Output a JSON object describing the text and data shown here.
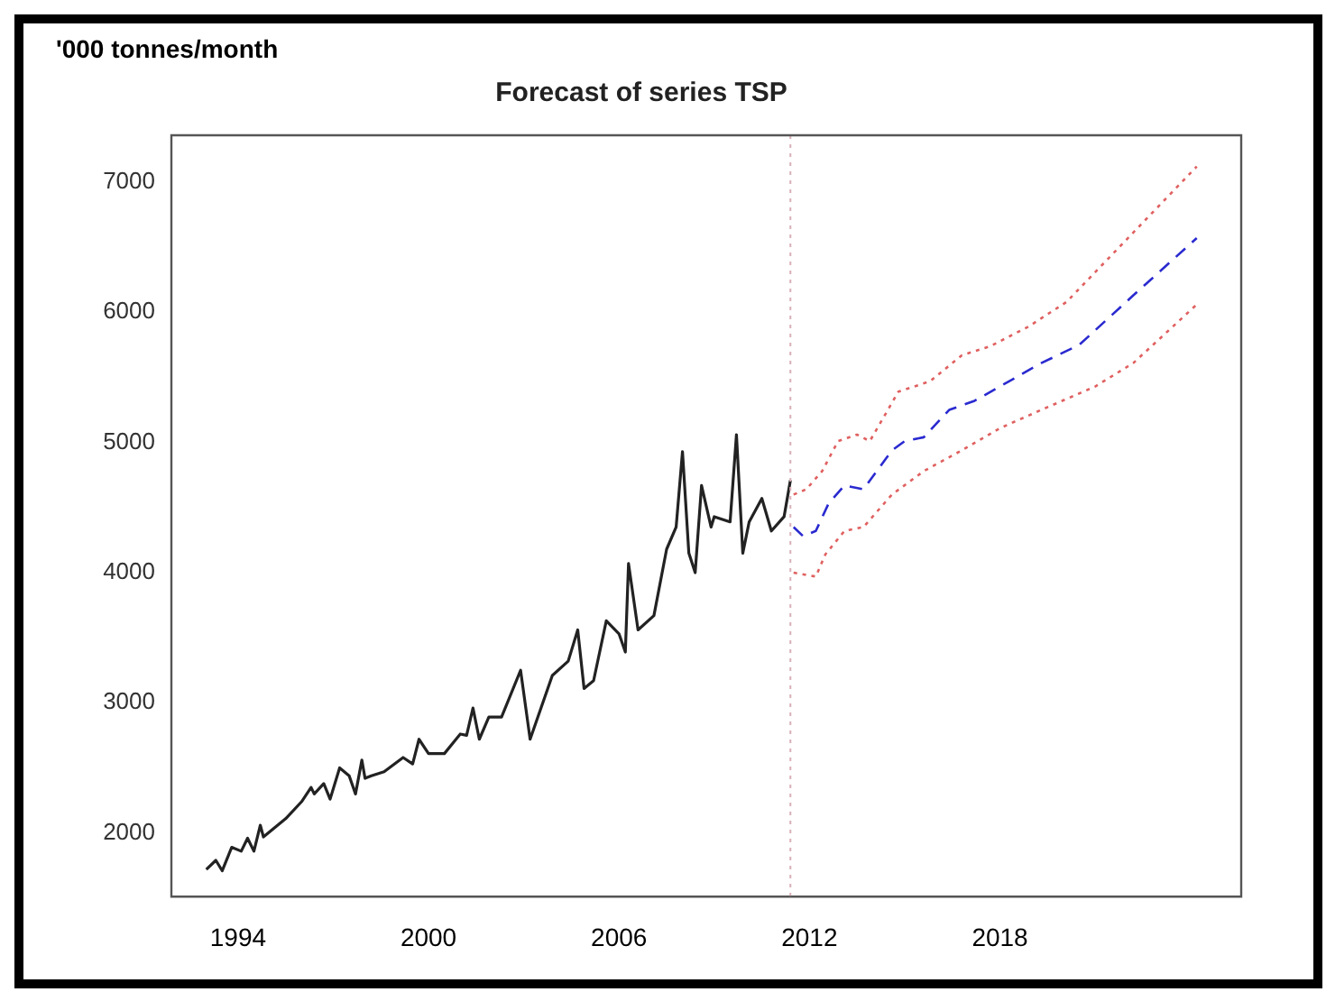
{
  "chart_data": {
    "type": "line",
    "title": "Forecast of series TSP",
    "ylabel": "'000 tonnes/month",
    "xlim": [
      1991.9,
      2025.6
    ],
    "xticks": [
      1994,
      2000,
      2006,
      2012,
      2018
    ],
    "ylim": [
      1510,
      7360
    ],
    "yticks": [
      2000,
      3000,
      4000,
      5000,
      6000,
      7000
    ],
    "grid": false,
    "legend": false,
    "ref_lines": [
      {
        "axis": "x",
        "value": 2011.4,
        "color": "#d8b0b8",
        "line_style": "dotted"
      }
    ],
    "series": [
      {
        "color": "#222222",
        "line_style": "solid",
        "x": [
          1993.0,
          1993.3,
          1993.5,
          1993.8,
          1994.1,
          1994.3,
          1994.5,
          1994.7,
          1994.8,
          1995.5,
          1996.0,
          1996.3,
          1996.4,
          1996.7,
          1996.9,
          1997.2,
          1997.5,
          1997.7,
          1997.9,
          1998.0,
          1998.2,
          1998.6,
          1999.2,
          1999.5,
          1999.7,
          2000.0,
          2000.5,
          2001.0,
          2001.2,
          2001.4,
          2001.6,
          2001.9,
          2002.3,
          2002.9,
          2003.2,
          2003.9,
          2004.4,
          2004.7,
          2004.9,
          2005.2,
          2005.6,
          2006.0,
          2006.2,
          2006.3,
          2006.6,
          2007.1,
          2007.5,
          2007.8,
          2008.0,
          2008.2,
          2008.4,
          2008.6,
          2008.9,
          2009.0,
          2009.5,
          2009.7,
          2009.9,
          2010.1,
          2010.5,
          2010.8,
          2011.2,
          2011.4
        ],
        "values": [
          1720,
          1790,
          1710,
          1890,
          1860,
          1960,
          1860,
          2060,
          1970,
          2110,
          2240,
          2350,
          2300,
          2380,
          2260,
          2500,
          2440,
          2300,
          2560,
          2420,
          2440,
          2470,
          2580,
          2530,
          2720,
          2610,
          2610,
          2760,
          2750,
          2960,
          2720,
          2890,
          2890,
          3250,
          2720,
          3210,
          3320,
          3560,
          3110,
          3170,
          3630,
          3530,
          3390,
          4070,
          3560,
          3670,
          4180,
          4350,
          4930,
          4150,
          4000,
          4670,
          4350,
          4430,
          4390,
          5060,
          4150,
          4390,
          4570,
          4320,
          4430,
          4710
        ]
      },
      {
        "color": "#2a2ad0",
        "line_style": "dashed",
        "x": [
          2011.5,
          2011.8,
          2012.2,
          2012.6,
          2013.1,
          2013.7,
          2014.6,
          2015.0,
          2015.6,
          2016.4,
          2017.2,
          2018.0,
          2019.3,
          2020.5,
          2022.2,
          2024.2
        ],
        "values": [
          4350,
          4280,
          4320,
          4530,
          4670,
          4640,
          4940,
          5010,
          5040,
          5250,
          5320,
          5430,
          5610,
          5750,
          6130,
          6570
        ]
      },
      {
        "color": "#e06060",
        "line_style": "dotted",
        "x": [
          2011.5,
          2011.9,
          2012.4,
          2012.9,
          2013.5,
          2013.9,
          2014.8,
          2015.8,
          2016.8,
          2017.7,
          2018.9,
          2020.1,
          2024.2
        ],
        "values": [
          4600,
          4640,
          4780,
          5010,
          5060,
          5010,
          5390,
          5470,
          5670,
          5740,
          5890,
          6080,
          7120
        ]
      },
      {
        "color": "#e06060",
        "line_style": "dotted",
        "x": [
          2011.5,
          2012.2,
          2012.5,
          2013.1,
          2013.7,
          2014.6,
          2015.6,
          2016.8,
          2018.0,
          2019.3,
          2021.0,
          2022.2,
          2024.2
        ],
        "values": [
          4000,
          3970,
          4140,
          4320,
          4350,
          4600,
          4780,
          4940,
          5110,
          5250,
          5430,
          5610,
          6060
        ]
      }
    ]
  }
}
